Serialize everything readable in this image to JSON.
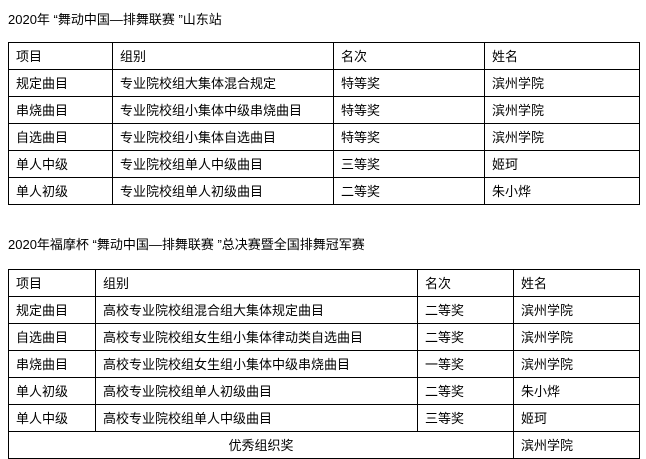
{
  "page": {
    "background_color": "#ffffff",
    "text_color": "#000000",
    "table_border_color": "#000000"
  },
  "tables": [
    {
      "title": "2020年 “舞动中国—排舞联赛 ”山东站",
      "headers": [
        "项目",
        "组别",
        "名次",
        "姓名"
      ],
      "rows": [
        [
          "规定曲目",
          "专业院校组大集体混合规定",
          "特等奖",
          "滨州学院"
        ],
        [
          "串烧曲目",
          "专业院校组小集体中级串烧曲目",
          "特等奖",
          "滨州学院"
        ],
        [
          "自选曲目",
          "专业院校组小集体自选曲目",
          "特等奖",
          "滨州学院"
        ],
        [
          "单人中级",
          "专业院校组单人中级曲目",
          "三等奖",
          "姬珂"
        ],
        [
          "单人初级",
          "专业院校组单人初级曲目",
          "二等奖",
          "朱小烨"
        ]
      ]
    },
    {
      "title": "2020年福摩杯 “舞动中国—排舞联赛 ”总决赛暨全国排舞冠军赛",
      "headers": [
        "项目",
        "组别",
        "名次",
        "姓名"
      ],
      "rows": [
        [
          "规定曲目",
          "高校专业院校组混合组大集体规定曲目",
          "二等奖",
          "滨州学院"
        ],
        [
          "自选曲目",
          "高校专业院校组女生组小集体律动类自选曲目",
          "二等奖",
          "滨州学院"
        ],
        [
          "串烧曲目",
          "高校专业院校组女生组小集体中级串烧曲目",
          "一等奖",
          "滨州学院"
        ],
        [
          "单人初级",
          "高校专业院校组单人初级曲目",
          "二等奖",
          "朱小烨"
        ],
        [
          "单人中级",
          "高校专业院校组单人中级曲目",
          "三等奖",
          "姬珂"
        ]
      ],
      "footer": {
        "merged_label": "优秀组织奖",
        "name": "滨州学院"
      }
    }
  ]
}
